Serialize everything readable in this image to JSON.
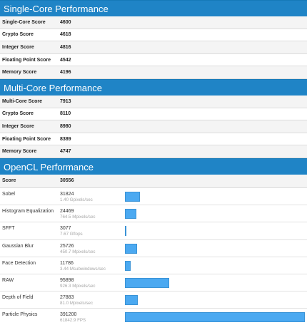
{
  "single": {
    "title": "Single-Core Performance",
    "rows": [
      {
        "label": "Single-Core Score",
        "value": "4600"
      },
      {
        "label": "Crypto Score",
        "value": "4618"
      },
      {
        "label": "Integer Score",
        "value": "4816"
      },
      {
        "label": "Floating Point Score",
        "value": "4542"
      },
      {
        "label": "Memory Score",
        "value": "4196"
      }
    ]
  },
  "multi": {
    "title": "Multi-Core Performance",
    "rows": [
      {
        "label": "Multi-Core Score",
        "value": "7913"
      },
      {
        "label": "Crypto Score",
        "value": "8110"
      },
      {
        "label": "Integer Score",
        "value": "8980"
      },
      {
        "label": "Floating Point Score",
        "value": "8389"
      },
      {
        "label": "Memory Score",
        "value": "4747"
      }
    ]
  },
  "opencl": {
    "title": "OpenCL Performance",
    "score_label": "Score",
    "score_value": "30556",
    "rows": [
      {
        "label": "Sobel",
        "score": "31824",
        "sub": "1.40 Gpixels/sec",
        "bar_fraction": 0.0814
      },
      {
        "label": "Histogram Equalization",
        "score": "24469",
        "sub": "764.5 Mpixels/sec",
        "bar_fraction": 0.0626
      },
      {
        "label": "SFFT",
        "score": "3077",
        "sub": "7.67 Gflops",
        "bar_fraction": 0.0079
      },
      {
        "label": "Gaussian Blur",
        "score": "25726",
        "sub": "450.7 Mpixels/sec",
        "bar_fraction": 0.0658
      },
      {
        "label": "Face Detection",
        "score": "11786",
        "sub": "3.44 Msubwindows/sec",
        "bar_fraction": 0.0301
      },
      {
        "label": "RAW",
        "score": "95898",
        "sub": "926.3 Mpixels/sec",
        "bar_fraction": 0.2451
      },
      {
        "label": "Depth of Field",
        "score": "27883",
        "sub": "81.0 Mpixels/sec",
        "bar_fraction": 0.0713
      },
      {
        "label": "Particle Physics",
        "score": "391200",
        "sub": "61842.9 FPS",
        "bar_fraction": 1.0
      }
    ],
    "bar_color": "#4ba9f1"
  },
  "header_color": "#1f84c6"
}
